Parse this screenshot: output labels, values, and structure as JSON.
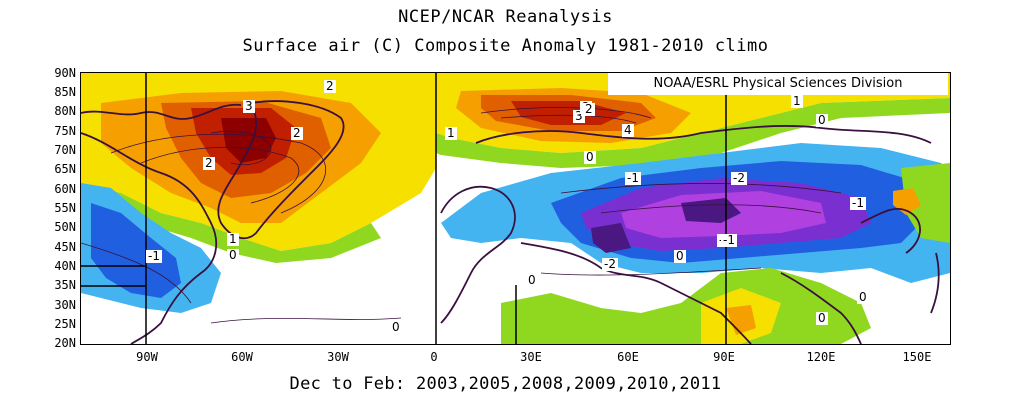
{
  "title_line1": "NCEP/NCAR Reanalysis",
  "title_line2": "Surface air (C) Composite Anomaly 1981-2010 climo",
  "credit": "NOAA/ESRL Physical Sciences Division",
  "footer": "Dec to Feb: 2003,2005,2008,2009,2010,2011",
  "lat_labels": [
    "90N",
    "85N",
    "80N",
    "75N",
    "70N",
    "65N",
    "60N",
    "55N",
    "50N",
    "45N",
    "40N",
    "35N",
    "30N",
    "25N",
    "20N"
  ],
  "lon_labels": [
    "90W",
    "60W",
    "30W",
    "0",
    "30E",
    "60E",
    "90E",
    "120E",
    "150E"
  ],
  "contour_labels": [
    "2",
    "3",
    "2",
    "2",
    "1",
    "1",
    "-1",
    "0",
    "3",
    "2",
    "2",
    "4",
    "0",
    "1",
    "0",
    "-1",
    "-2",
    "-1",
    "-2",
    "-1",
    "-1",
    "0",
    "0",
    "0",
    "0",
    "0"
  ],
  "colors": {
    "yellow": "#f5e000",
    "orange": "#f5a000",
    "dark_orange": "#e06000",
    "red": "#c02000",
    "dark_red": "#8c0000",
    "green": "#90d820",
    "light_blue": "#44b4f0",
    "blue": "#2060e0",
    "purple": "#7a30d0",
    "magenta": "#b040e0",
    "dark_purple": "#4a1880",
    "coast": "#3a1040"
  }
}
